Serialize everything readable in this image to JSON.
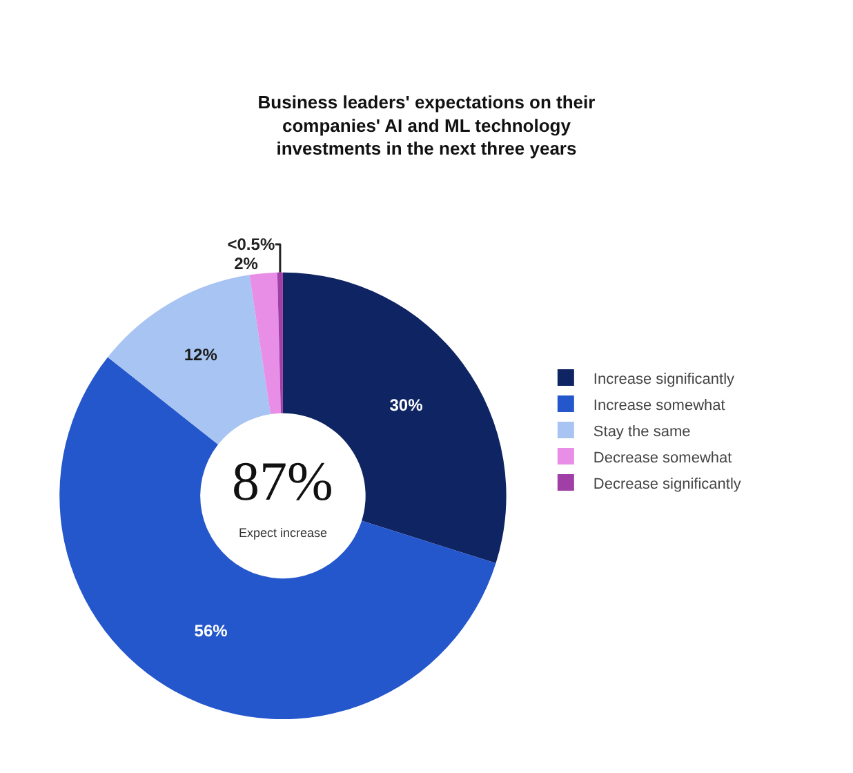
{
  "chart_data": {
    "type": "donut",
    "title": "Business leaders' expectations on their companies' AI and ML technology investments in the next three years",
    "categories": [
      "Increase significantly",
      "Increase somewhat",
      "Stay the same",
      "Decrease somewhat",
      "Decrease significantly"
    ],
    "values": [
      30,
      56,
      12,
      2,
      0.4
    ],
    "value_labels": [
      "30%",
      "56%",
      "12%",
      "2%",
      "<0.5%"
    ],
    "colors": [
      "#0f2463",
      "#2456cc",
      "#a8c4f2",
      "#e88ee6",
      "#a03fa6"
    ],
    "annotations": [
      "87%",
      "Expect increase"
    ],
    "legend": "right"
  }
}
